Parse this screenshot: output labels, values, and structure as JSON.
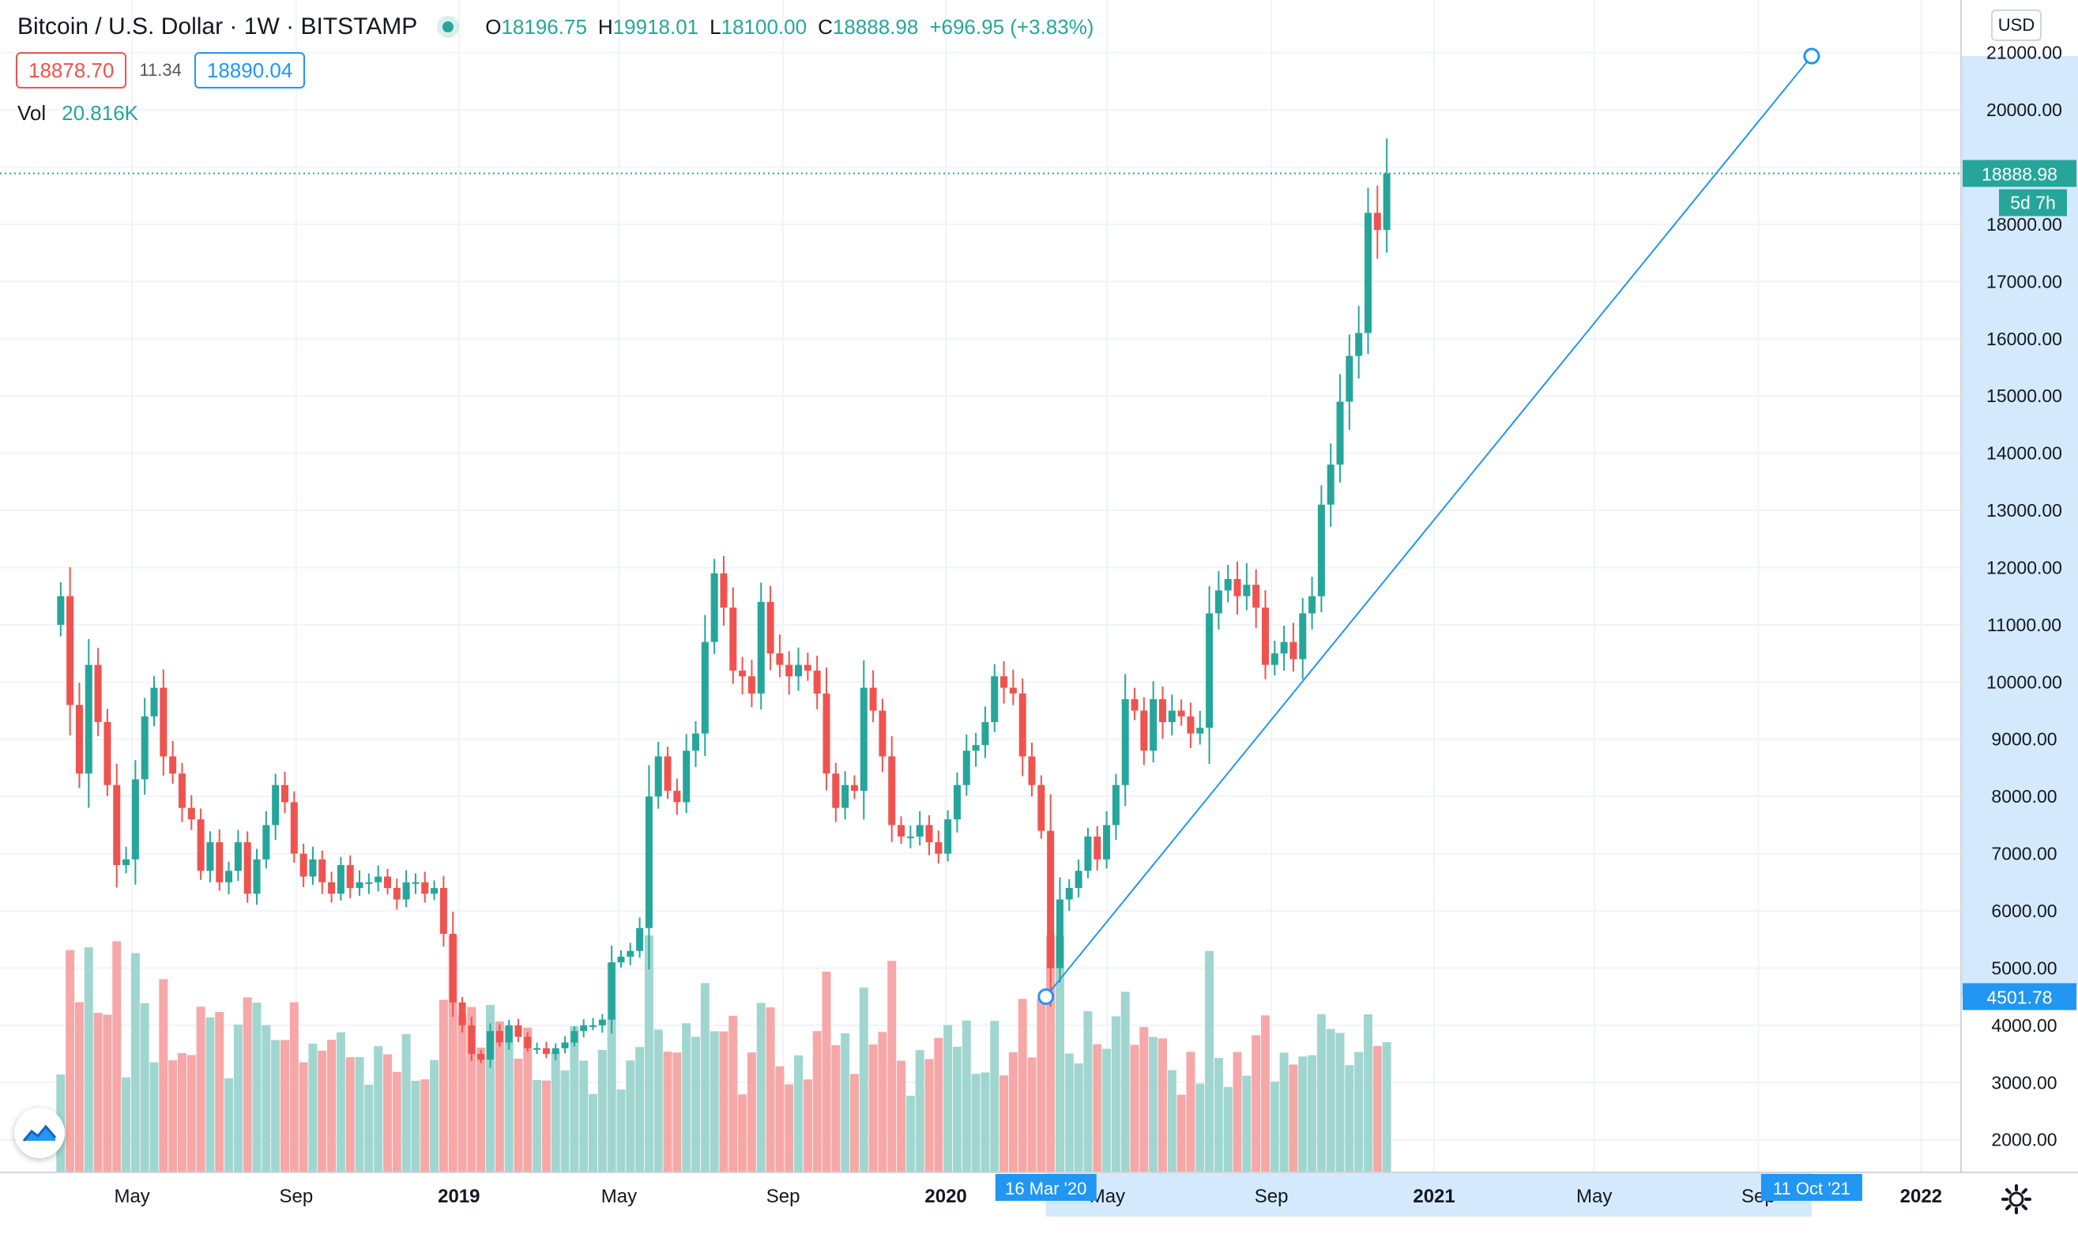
{
  "header": {
    "symbol": "Bitcoin / U.S. Dollar",
    "interval": "1W",
    "exchange": "BITSTAMP",
    "ohlc": [
      {
        "key": "O",
        "value": "18196.75"
      },
      {
        "key": "H",
        "value": "19918.01"
      },
      {
        "key": "L",
        "value": "18100.00"
      },
      {
        "key": "C",
        "value": "18888.98"
      }
    ],
    "change": "+696.95 (+3.83%)"
  },
  "trade": {
    "sell": "18878.70",
    "spread": "11.34",
    "buy": "18890.04"
  },
  "volume_legend": {
    "label": "Vol",
    "value": "20.816K"
  },
  "currency": "USD",
  "countdown": "5d 7h",
  "colors": {
    "up": "#26a69a",
    "down": "#ef5350",
    "up_volume": "#a1d6d0",
    "down_volume": "#f5a8a7",
    "trendline": "#2196f3",
    "axis_highlight": "#d4e9fb",
    "grid": "#f0f3fa",
    "price_line": "#26a69a"
  },
  "icons": {
    "logo": "tradingview-logo-icon",
    "settings": "gear-icon"
  },
  "chart_data": {
    "type": "candlestick",
    "interval": "1W",
    "x": {
      "range": [
        "2018-01-22",
        "2022-01-31"
      ],
      "tick_labels": [
        {
          "date": "2018-05-01",
          "label": "May"
        },
        {
          "date": "2018-09-01",
          "label": "Sep"
        },
        {
          "date": "2019-01-01",
          "label": "2019"
        },
        {
          "date": "2019-05-01",
          "label": "May"
        },
        {
          "date": "2019-09-01",
          "label": "Sep"
        },
        {
          "date": "2020-01-01",
          "label": "2020"
        },
        {
          "date": "2020-05-01",
          "label": "May"
        },
        {
          "date": "2020-09-01",
          "label": "Sep"
        },
        {
          "date": "2021-01-01",
          "label": "2021"
        },
        {
          "date": "2021-05-01",
          "label": "May"
        },
        {
          "date": "2021-09-01",
          "label": "Sep"
        },
        {
          "date": "2022-01-01",
          "label": "2022"
        }
      ]
    },
    "y": {
      "range": [
        1430,
        21920
      ],
      "ticks": [
        {
          "value": 2000,
          "label": "2000.00"
        },
        {
          "value": 3000,
          "label": "3000.00"
        },
        {
          "value": 4000,
          "label": "4000.00"
        },
        {
          "value": 5000,
          "label": "5000.00"
        },
        {
          "value": 6000,
          "label": "6000.00"
        },
        {
          "value": 7000,
          "label": "7000.00"
        },
        {
          "value": 8000,
          "label": "8000.00"
        },
        {
          "value": 9000,
          "label": "9000.00"
        },
        {
          "value": 10000,
          "label": "10000.00"
        },
        {
          "value": 11000,
          "label": "11000.00"
        },
        {
          "value": 12000,
          "label": "12000.00"
        },
        {
          "value": 13000,
          "label": "13000.00"
        },
        {
          "value": 14000,
          "label": "14000.00"
        },
        {
          "value": 15000,
          "label": "15000.00"
        },
        {
          "value": 16000,
          "label": "16000.00"
        },
        {
          "value": 17000,
          "label": "17000.00"
        },
        {
          "value": 18000,
          "label": "18000.00"
        },
        {
          "value": 19000,
          "label": "19000.00"
        },
        {
          "value": 20000,
          "label": "20000.00"
        },
        {
          "value": 21000,
          "label": "21000.00"
        }
      ]
    },
    "candle_closes": [
      11500,
      9600,
      8400,
      10300,
      9300,
      8200,
      6800,
      6900,
      8300,
      9400,
      9900,
      8700,
      8400,
      7800,
      7600,
      6700,
      7200,
      6500,
      6700,
      7200,
      6300,
      6900,
      7500,
      8200,
      7900,
      7000,
      6600,
      6900,
      6500,
      6300,
      6800,
      6400,
      6500,
      6500,
      6600,
      6400,
      6200,
      6500,
      6500,
      6300,
      6400,
      5600,
      4400,
      4000,
      3500,
      3400,
      3900,
      3700,
      4000,
      3800,
      3600,
      3600,
      3500,
      3600,
      3700,
      3900,
      4000,
      4000,
      4100,
      5100,
      5200,
      5300,
      5700,
      8000,
      8700,
      8100,
      7900,
      8800,
      9100,
      10700,
      11900,
      11300,
      10200,
      10100,
      9800,
      11400,
      10500,
      10300,
      10100,
      10300,
      10200,
      9800,
      8400,
      7800,
      8200,
      8100,
      9900,
      9500,
      8700,
      7500,
      7300,
      7300,
      7500,
      7200,
      7000,
      7600,
      8200,
      8800,
      8900,
      9300,
      10100,
      9900,
      9800,
      8700,
      8200,
      7400,
      5000,
      6200,
      6400,
      6700,
      7300,
      6900,
      7500,
      8200,
      9700,
      9500,
      8800,
      9700,
      9300,
      9500,
      9400,
      9100,
      9200,
      11200,
      11600,
      11800,
      11500,
      11700,
      11300,
      10300,
      10500,
      10700,
      10400,
      11200,
      11500,
      13100,
      13800,
      14900,
      15700,
      16100,
      18200,
      17900,
      18889
    ],
    "trendline": {
      "start": {
        "date": "2020-03-16",
        "price": 4501.78,
        "date_label": "16 Mar '20",
        "price_label": "4501.78"
      },
      "end": {
        "date": "2021-10-11",
        "date_label": "11 Oct '21"
      }
    },
    "last_price": {
      "value": 18888.98,
      "label": "18888.98"
    }
  }
}
